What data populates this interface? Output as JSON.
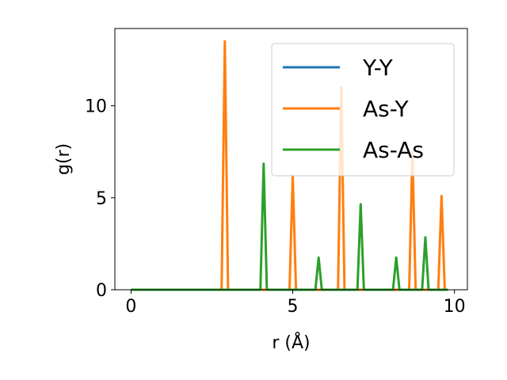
{
  "chart_data": {
    "type": "line",
    "xlabel": "r (Å)",
    "ylabel": "g(r)",
    "xlim": [
      -0.5,
      10.4
    ],
    "ylim": [
      0,
      14.2
    ],
    "xticks": [
      0,
      5,
      10
    ],
    "yticks": [
      0,
      5,
      10
    ],
    "grid": false,
    "legend_position": "upper right",
    "series": [
      {
        "name": "Y-Y",
        "color": "#1f77b4",
        "x": [
          0,
          9.8
        ],
        "y": [
          0,
          0
        ]
      },
      {
        "name": "As-Y",
        "color": "#ff7f0e",
        "x": [
          0,
          2.8,
          2.9,
          3.0,
          4.9,
          5.0,
          5.1,
          6.4,
          6.5,
          6.6,
          8.6,
          8.7,
          8.8,
          9.5,
          9.6,
          9.7,
          9.8
        ],
        "y": [
          0,
          0,
          13.5,
          0,
          0,
          6.2,
          0,
          0,
          11.0,
          0,
          0,
          7.5,
          0,
          0,
          5.1,
          0,
          0
        ]
      },
      {
        "name": "As-As",
        "color": "#2ca02c",
        "x": [
          0,
          4.0,
          4.1,
          4.2,
          5.7,
          5.8,
          5.9,
          7.0,
          7.1,
          7.2,
          8.1,
          8.2,
          8.3,
          9.0,
          9.1,
          9.2,
          9.8
        ],
        "y": [
          0,
          0,
          6.85,
          0,
          0,
          1.75,
          0,
          0,
          4.65,
          0,
          0,
          1.75,
          0,
          0,
          2.85,
          0,
          0
        ]
      }
    ]
  }
}
